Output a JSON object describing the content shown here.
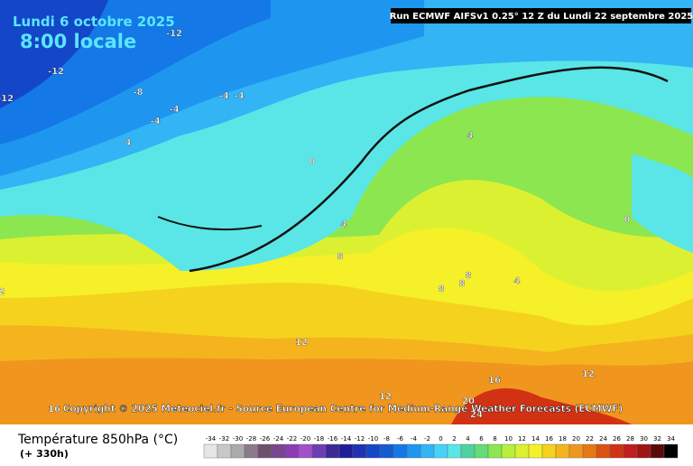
{
  "header": {
    "date": "Lundi 6 octobre 2025",
    "time": "8:00 locale",
    "run": "Run ECMWF AIFSv1 0.25° 12 Z du Lundi 22 septembre 2025"
  },
  "map": {
    "copyright": "Copyright © 2025 Meteociel.fr - Source European Centre for Medium-Range Weather Forecasts (ECMWF)",
    "contour_labels": [
      -12,
      -12,
      -12,
      -8,
      -4,
      -4,
      -4,
      -4,
      4,
      0,
      4,
      4,
      8,
      8,
      8,
      8,
      4,
      0,
      12,
      12,
      16,
      12,
      20,
      24,
      16,
      2
    ]
  },
  "legend": {
    "title": "Température 850hPa (°C)",
    "lead": "(+ 330h)",
    "ticks": [
      -34,
      -32,
      -30,
      -28,
      -26,
      -24,
      -22,
      -20,
      -18,
      -16,
      -14,
      -12,
      -10,
      -8,
      -6,
      -4,
      -2,
      0,
      2,
      4,
      6,
      8,
      10,
      12,
      14,
      16,
      18,
      20,
      22,
      24,
      26,
      28,
      30,
      32,
      34
    ],
    "colors": [
      "#e6e6e6",
      "#c8c8c8",
      "#aaaaaa",
      "#8c7a8c",
      "#6e506e",
      "#78468c",
      "#8c3cb4",
      "#a050c8",
      "#6e3cb4",
      "#3c2896",
      "#1e1e96",
      "#1e32b4",
      "#1446c8",
      "#145ad2",
      "#1478e6",
      "#1e96f0",
      "#32b4f5",
      "#46d2fa",
      "#5ae6e6",
      "#50d2a0",
      "#64dc78",
      "#8ce650",
      "#b4f03c",
      "#dcf032",
      "#f5f028",
      "#f5d21e",
      "#f5b41e",
      "#f0961e",
      "#e67814",
      "#dc5014",
      "#d23214",
      "#be1e1e",
      "#a01414",
      "#5a0a0a",
      "#000000"
    ]
  }
}
